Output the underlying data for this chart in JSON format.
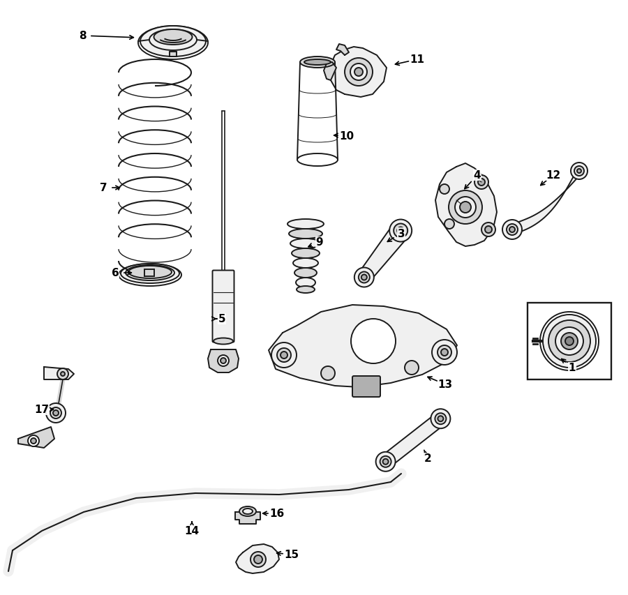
{
  "bg_color": "#ffffff",
  "line_color": "#1a1a1a",
  "fill_light": "#f0f0f0",
  "fill_mid": "#d8d8d8",
  "fill_dark": "#b0b0b0"
}
